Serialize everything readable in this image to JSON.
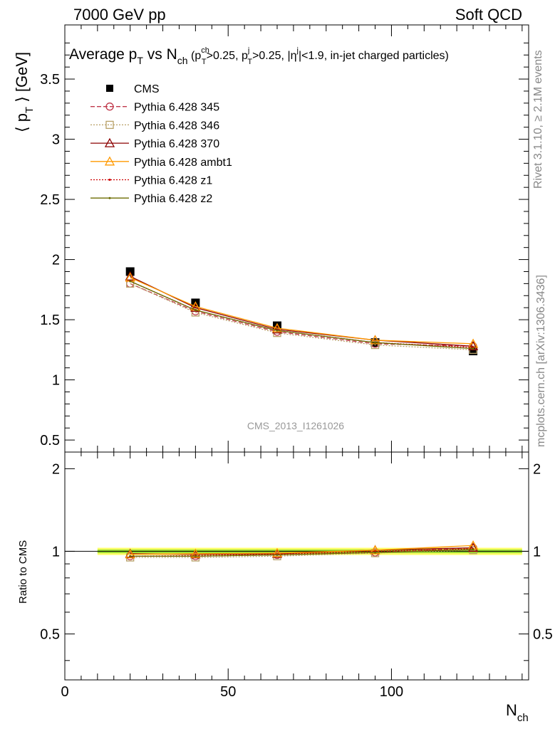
{
  "header": {
    "left": "7000 GeV pp",
    "right": "Soft QCD"
  },
  "side": {
    "rivet": "Rivet 3.1.10, ≥ 2.1M events",
    "mcplots": "mcplots.cern.ch [arXiv:1306.3436]"
  },
  "watermark": "CMS_2013_I1261026",
  "colors": {
    "cms": "#000000",
    "p345": "#c0394b",
    "p346": "#b8a067",
    "p370": "#8b0000",
    "ambt1": "#ff9900",
    "z1": "#cc0000",
    "z2": "#6b6b00",
    "band_outer": "#ffff66",
    "band_inner": "#99dd33"
  },
  "chart_data": [
    {
      "type": "line",
      "title_parts": {
        "t1": "Average p",
        "t1sub": "T",
        "t2": " vs N",
        "t2sub": "ch",
        "t3": " (p",
        "t3sup": "ch",
        "t3sub": "T",
        "t4": ">0.25, p",
        "t4sup": "j",
        "t4sub": "T",
        "t5": ">0.25, |η",
        "t5sup": "j",
        "t6": "|<1.9, in-jet charged particles)"
      },
      "ylabel": {
        "pre": "⟨ p",
        "sub": "T",
        "post": " ⟩ [GeV]"
      },
      "xlim": [
        0,
        142
      ],
      "ylim": [
        0.4,
        3.95
      ],
      "yticks": [
        0.5,
        1,
        1.5,
        2,
        2.5,
        3,
        3.5
      ],
      "ytick_labels": [
        "0.5",
        "1",
        "1.5",
        "2",
        "2.5",
        "3",
        "3.5"
      ],
      "x": [
        20,
        40,
        65,
        95,
        125
      ],
      "series": [
        {
          "name": "CMS",
          "key": "cms",
          "values": [
            1.9,
            1.64,
            1.45,
            1.31,
            1.24
          ]
        },
        {
          "name": "Pythia 6.428 345",
          "key": "p345",
          "values": [
            1.8,
            1.57,
            1.4,
            1.3,
            1.28
          ]
        },
        {
          "name": "Pythia 6.428 346",
          "key": "p346",
          "values": [
            1.8,
            1.56,
            1.39,
            1.29,
            1.25
          ]
        },
        {
          "name": "Pythia 6.428 370",
          "key": "p370",
          "values": [
            1.86,
            1.6,
            1.42,
            1.33,
            1.28
          ]
        },
        {
          "name": "Pythia 6.428 ambt1",
          "key": "ambt1",
          "values": [
            1.85,
            1.61,
            1.43,
            1.33,
            1.3
          ]
        },
        {
          "name": "Pythia 6.428 z1",
          "key": "z1",
          "values": [
            1.82,
            1.58,
            1.41,
            1.31,
            1.27
          ]
        },
        {
          "name": "Pythia 6.428 z2",
          "key": "z2",
          "values": [
            1.82,
            1.58,
            1.41,
            1.31,
            1.26
          ]
        }
      ]
    },
    {
      "type": "line",
      "ylabel": "Ratio to CMS",
      "xlabel": {
        "main": "N",
        "sub": "ch"
      },
      "xlim": [
        0,
        142
      ],
      "ylim": [
        0.34,
        2.3
      ],
      "yticks": [
        0.5,
        1,
        2
      ],
      "ytick_labels": [
        "0.5",
        "1",
        "2"
      ],
      "xticks": [
        0,
        50,
        100
      ],
      "xtick_labels": [
        "0",
        "50",
        "100"
      ],
      "x": [
        20,
        40,
        65,
        95,
        125
      ],
      "band": {
        "xmin": 10,
        "xmax": 140,
        "outer": [
          0.97,
          1.03
        ],
        "inner": [
          0.985,
          1.015
        ]
      },
      "series": [
        {
          "name": "Pythia 6.428 345",
          "key": "p345",
          "values": [
            0.96,
            0.96,
            0.97,
            0.99,
            1.03
          ]
        },
        {
          "name": "Pythia 6.428 346",
          "key": "p346",
          "values": [
            0.95,
            0.95,
            0.96,
            0.985,
            1.01
          ]
        },
        {
          "name": "Pythia 6.428 370",
          "key": "p370",
          "values": [
            0.98,
            0.975,
            0.98,
            1.01,
            1.03
          ]
        },
        {
          "name": "Pythia 6.428 ambt1",
          "key": "ambt1",
          "values": [
            0.975,
            0.98,
            0.985,
            1.01,
            1.05
          ]
        },
        {
          "name": "Pythia 6.428 z1",
          "key": "z1",
          "values": [
            0.96,
            0.965,
            0.975,
            1.0,
            1.02
          ]
        },
        {
          "name": "Pythia 6.428 z2",
          "key": "z2",
          "values": [
            0.96,
            0.96,
            0.97,
            0.99,
            1.015
          ]
        }
      ]
    }
  ]
}
